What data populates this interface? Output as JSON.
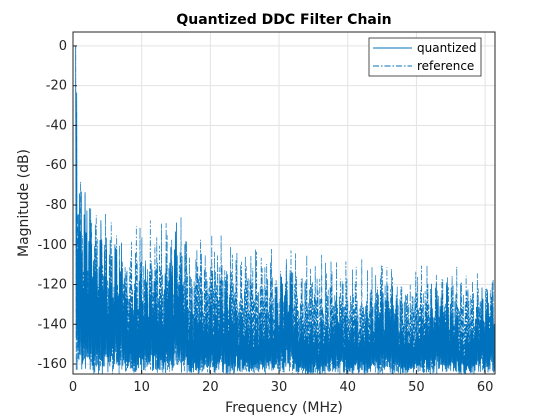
{
  "chart_data": {
    "type": "line",
    "title": "Quantized DDC Filter Chain",
    "xlabel": "Frequency (MHz)",
    "ylabel": "Magnitude (dB)",
    "xlim": [
      0,
      61.44
    ],
    "ylim": [
      -165,
      7
    ],
    "xticks": [
      0,
      10,
      20,
      30,
      40,
      50,
      60
    ],
    "xtick_labels": [
      "0",
      "10",
      "20",
      "30",
      "40",
      "50",
      "60"
    ],
    "yticks": [
      0,
      -20,
      -40,
      -60,
      -80,
      -100,
      -120,
      -140,
      -160
    ],
    "ytick_labels": [
      "0",
      "-20",
      "-40",
      "-60",
      "-80",
      "-100",
      "-120",
      "-140",
      "-160"
    ],
    "grid": true,
    "legend_position": "top-right",
    "line_color": "#0072BD",
    "series": [
      {
        "name": "quantized",
        "style": "solid",
        "passband": {
          "x_start": 0,
          "x_end": 0.4,
          "value": 0
        },
        "peak_envelope": [
          {
            "x": 0.5,
            "y": 0
          },
          {
            "x": 0.8,
            "y": -40
          },
          {
            "x": 1.0,
            "y": -62
          },
          {
            "x": 1.5,
            "y": -63
          },
          {
            "x": 2.0,
            "y": -66
          },
          {
            "x": 3.0,
            "y": -76
          },
          {
            "x": 4.0,
            "y": -85
          },
          {
            "x": 5.0,
            "y": -95
          },
          {
            "x": 6.0,
            "y": -85
          },
          {
            "x": 7.0,
            "y": -85
          },
          {
            "x": 8.0,
            "y": -115
          },
          {
            "x": 10.0,
            "y": -110
          },
          {
            "x": 12.0,
            "y": -108
          },
          {
            "x": 13.0,
            "y": -115
          },
          {
            "x": 14.7,
            "y": -84
          },
          {
            "x": 15.5,
            "y": -90
          },
          {
            "x": 17.0,
            "y": -120
          },
          {
            "x": 19.5,
            "y": -122
          },
          {
            "x": 22.5,
            "y": -112
          },
          {
            "x": 25.0,
            "y": -132
          },
          {
            "x": 28.5,
            "y": -130
          },
          {
            "x": 31.3,
            "y": -101
          },
          {
            "x": 33.0,
            "y": -132
          },
          {
            "x": 35.5,
            "y": -136
          },
          {
            "x": 38.5,
            "y": -122
          },
          {
            "x": 42.0,
            "y": -138
          },
          {
            "x": 45.5,
            "y": -108
          },
          {
            "x": 49.0,
            "y": -140
          },
          {
            "x": 53.5,
            "y": -110
          },
          {
            "x": 57.0,
            "y": -140
          },
          {
            "x": 61.0,
            "y": -110
          }
        ],
        "floor": -165
      },
      {
        "name": "reference",
        "style": "dash-dot",
        "passband": {
          "x_start": 0,
          "x_end": 0.4,
          "value": 0
        },
        "peak_envelope": [
          {
            "x": 0.5,
            "y": 0
          },
          {
            "x": 1.0,
            "y": -62
          },
          {
            "x": 3.0,
            "y": -76
          },
          {
            "x": 6.0,
            "y": -85
          },
          {
            "x": 14.7,
            "y": -84
          },
          {
            "x": 31.3,
            "y": -101
          },
          {
            "x": 45.5,
            "y": -108
          },
          {
            "x": 53.5,
            "y": -110
          },
          {
            "x": 61.0,
            "y": -110
          }
        ],
        "floor": -165
      }
    ]
  }
}
